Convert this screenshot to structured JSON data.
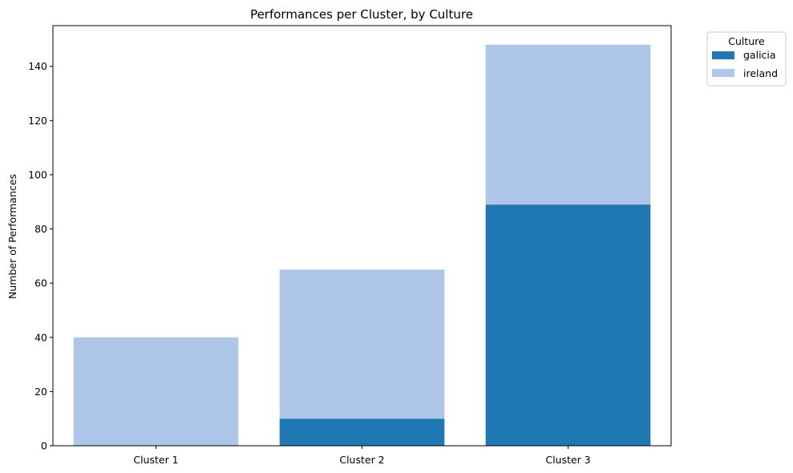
{
  "chart_data": {
    "type": "bar",
    "stacked": true,
    "title": "Performances per Cluster, by Culture",
    "xlabel": "",
    "ylabel": "Number of Performances",
    "categories": [
      "Cluster 1",
      "Cluster 2",
      "Cluster 3"
    ],
    "ylim": [
      0,
      155
    ],
    "yticks": [
      0,
      20,
      40,
      60,
      80,
      100,
      120,
      140
    ],
    "grid": false,
    "legend": {
      "title": "Culture",
      "placement": "outside-top-right"
    },
    "series": [
      {
        "name": "galicia",
        "values": [
          0,
          10,
          89
        ],
        "color": "#1f77b4"
      },
      {
        "name": "ireland",
        "values": [
          40,
          55,
          59
        ],
        "color": "#aec7e8"
      }
    ]
  }
}
